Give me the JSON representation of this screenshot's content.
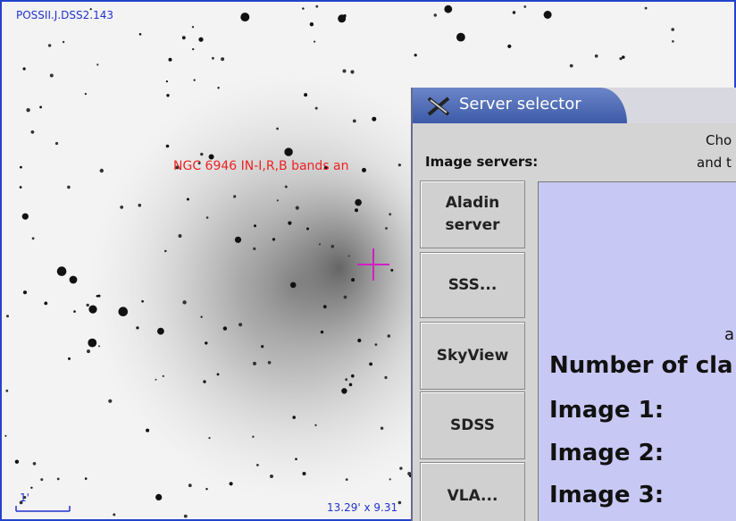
{
  "image_view": {
    "survey_label": "POSSII.J.DSS2.143",
    "object_label": "NGC 6946 IN-I,R,B bands an",
    "scale_label": "1'",
    "field_size": "13.29' x 9.31"
  },
  "dialog": {
    "title": "Server selector",
    "servers_heading": "Image servers:",
    "instructions": [
      "Cho",
      "and t"
    ],
    "servers": [
      "Aladin server",
      "SSS...",
      "SkyView",
      "SDSS",
      "VLA..."
    ],
    "panel": {
      "fragment": "a",
      "lines": [
        "Number of cla",
        "Image 1:",
        "Image 2:",
        "Image 3:"
      ]
    }
  }
}
